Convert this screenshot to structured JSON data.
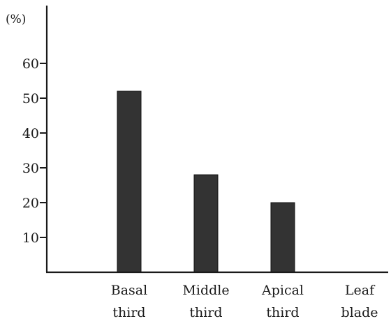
{
  "chart_data": {
    "type": "bar",
    "title": "",
    "xlabel": "",
    "ylabel": "(%)",
    "categories": [
      [
        "Basal",
        "third"
      ],
      [
        "Middle",
        "third"
      ],
      [
        "Apical",
        "third"
      ],
      [
        "Leaf",
        "blade"
      ]
    ],
    "values": [
      52,
      28,
      20,
      0
    ],
    "yticks": [
      10,
      20,
      30,
      40,
      50,
      60
    ],
    "ylim": [
      0,
      70
    ],
    "grid": false,
    "legend": "none",
    "bar_color": "#333333"
  }
}
